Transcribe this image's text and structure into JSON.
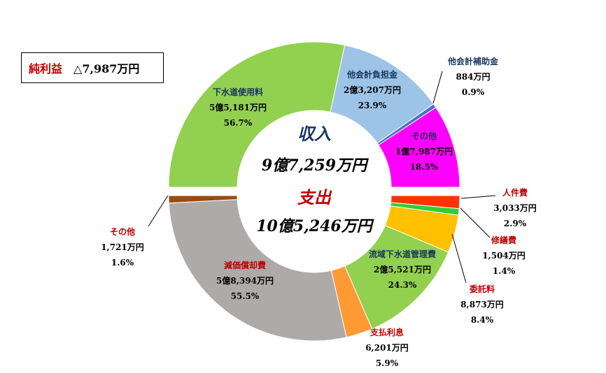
{
  "profit": {
    "label": "純利益",
    "value": "△7,987万円"
  },
  "colors": {
    "navy": "#17365d",
    "red": "#c00000",
    "black": "#000000"
  },
  "chart_data": [
    {
      "type": "pie",
      "title": "収入",
      "total_label": "9億7,259万円",
      "unit": "万円",
      "slices": [
        {
          "name": "下水道使用料",
          "amount": "5億5,181万円",
          "value": 55181,
          "percent": "56.7%",
          "color": "#92d050"
        },
        {
          "name": "他会計負担金",
          "amount": "2億3,207万円",
          "value": 23207,
          "percent": "23.9%",
          "color": "#9dc3e6"
        },
        {
          "name": "他会計補助金",
          "amount": "884万円",
          "value": 884,
          "percent": "0.9%",
          "color": "#4472c4"
        },
        {
          "name": "その他",
          "amount": "1億7,987万円",
          "value": 17987,
          "percent": "18.5%",
          "color": "#ff00ff"
        }
      ]
    },
    {
      "type": "pie",
      "title": "支出",
      "total_label": "10億5,246万円",
      "unit": "万円",
      "slices": [
        {
          "name": "人件費",
          "amount": "3,033万円",
          "value": 3033,
          "percent": "2.9%",
          "color": "#ff3300"
        },
        {
          "name": "修繕費",
          "amount": "1,504万円",
          "value": 1504,
          "percent": "1.4%",
          "color": "#33cc33"
        },
        {
          "name": "委託料",
          "amount": "8,873万円",
          "value": 8873,
          "percent": "8.4%",
          "color": "#ffc000"
        },
        {
          "name": "流域下水道管理費",
          "amount": "2億5,521万円",
          "value": 25521,
          "percent": "24.3%",
          "color": "#92d050"
        },
        {
          "name": "支払利息",
          "amount": "6,201万円",
          "value": 6201,
          "percent": "5.9%",
          "color": "#ff9933"
        },
        {
          "name": "減価償却費",
          "amount": "5億8,394万円",
          "value": 58394,
          "percent": "55.5%",
          "color": "#aeaaaa"
        },
        {
          "name": "その他",
          "amount": "1,721万円",
          "value": 1721,
          "percent": "1.6%",
          "color": "#994c0f"
        }
      ]
    }
  ]
}
